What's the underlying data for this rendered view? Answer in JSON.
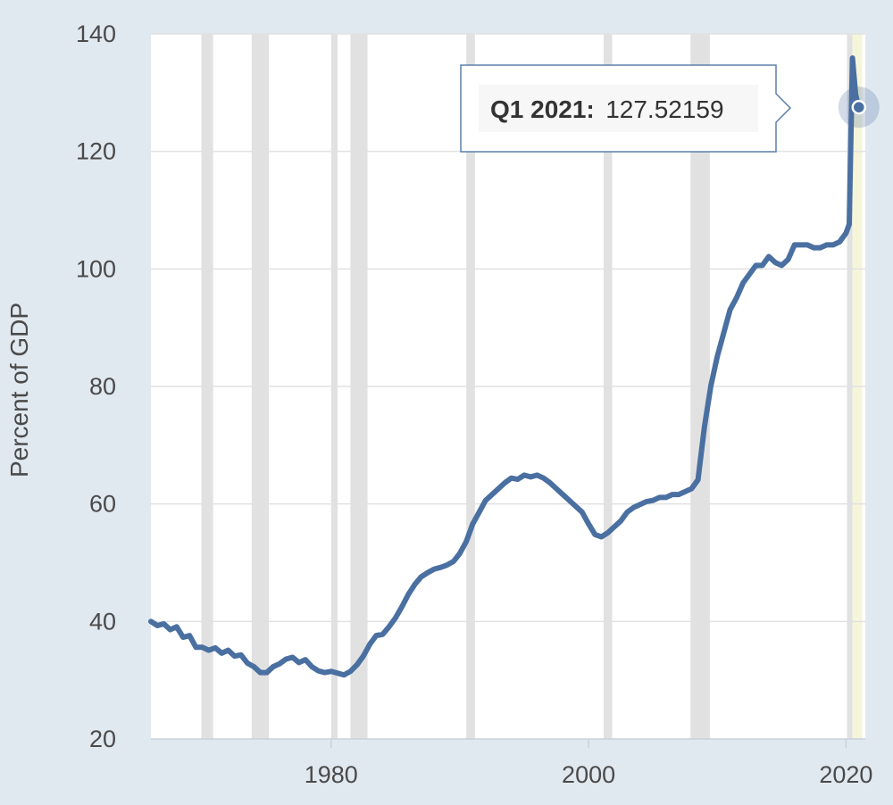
{
  "chart_data": {
    "type": "line",
    "title": "",
    "xlabel": "",
    "ylabel": "Percent of GDP",
    "xlim": [
      1966,
      2021.5
    ],
    "ylim": [
      20,
      140
    ],
    "x_ticks": [
      1980,
      2000,
      2020
    ],
    "y_ticks": [
      20,
      40,
      60,
      80,
      100,
      120,
      140
    ],
    "grid": true,
    "legend": "none",
    "colors": {
      "background": "#e1e9f0",
      "plot_background": "#ffffff",
      "line": "#4a6fa1",
      "recession_band": "#e1e1e1",
      "highlight_band": "#f5f5d9",
      "grid": "#e1e1e1",
      "tick_text": "#4a4a4a"
    },
    "recessions": [
      [
        1969.92,
        1970.83
      ],
      [
        1973.83,
        1975.17
      ],
      [
        1980.0,
        1980.5
      ],
      [
        1981.5,
        1982.83
      ],
      [
        1990.5,
        1991.17
      ],
      [
        2001.17,
        2001.83
      ],
      [
        2007.92,
        2009.42
      ],
      [
        2020.08,
        2020.33
      ]
    ],
    "highlight": [
      2020.5,
      2021.25
    ],
    "series": [
      {
        "values": [
          [
            1966.0,
            40.0
          ],
          [
            1966.5,
            39.3
          ],
          [
            1967.0,
            39.6
          ],
          [
            1967.5,
            38.6
          ],
          [
            1968.0,
            39.1
          ],
          [
            1968.5,
            37.3
          ],
          [
            1969.0,
            37.6
          ],
          [
            1969.5,
            35.6
          ],
          [
            1970.0,
            35.6
          ],
          [
            1970.5,
            35.1
          ],
          [
            1971.0,
            35.5
          ],
          [
            1971.5,
            34.6
          ],
          [
            1972.0,
            35.1
          ],
          [
            1972.5,
            34.1
          ],
          [
            1973.0,
            34.3
          ],
          [
            1973.5,
            32.9
          ],
          [
            1974.0,
            32.3
          ],
          [
            1974.5,
            31.3
          ],
          [
            1975.0,
            31.3
          ],
          [
            1975.5,
            32.3
          ],
          [
            1976.0,
            32.8
          ],
          [
            1976.5,
            33.6
          ],
          [
            1977.0,
            33.9
          ],
          [
            1977.5,
            33.0
          ],
          [
            1978.0,
            33.5
          ],
          [
            1978.5,
            32.3
          ],
          [
            1979.0,
            31.6
          ],
          [
            1979.5,
            31.3
          ],
          [
            1980.0,
            31.5
          ],
          [
            1980.5,
            31.2
          ],
          [
            1981.0,
            30.9
          ],
          [
            1981.5,
            31.5
          ],
          [
            1982.0,
            32.6
          ],
          [
            1982.5,
            34.1
          ],
          [
            1983.0,
            36.1
          ],
          [
            1983.5,
            37.6
          ],
          [
            1984.0,
            37.8
          ],
          [
            1984.5,
            39.1
          ],
          [
            1985.0,
            40.6
          ],
          [
            1985.5,
            42.5
          ],
          [
            1986.0,
            44.6
          ],
          [
            1986.5,
            46.3
          ],
          [
            1987.0,
            47.6
          ],
          [
            1987.5,
            48.3
          ],
          [
            1988.0,
            48.9
          ],
          [
            1988.5,
            49.2
          ],
          [
            1989.0,
            49.6
          ],
          [
            1989.5,
            50.2
          ],
          [
            1990.0,
            51.6
          ],
          [
            1990.5,
            53.6
          ],
          [
            1991.0,
            56.6
          ],
          [
            1991.5,
            58.6
          ],
          [
            1992.0,
            60.6
          ],
          [
            1992.5,
            61.6
          ],
          [
            1993.0,
            62.6
          ],
          [
            1993.5,
            63.6
          ],
          [
            1994.0,
            64.4
          ],
          [
            1994.5,
            64.2
          ],
          [
            1995.0,
            64.9
          ],
          [
            1995.5,
            64.6
          ],
          [
            1996.0,
            64.9
          ],
          [
            1996.5,
            64.4
          ],
          [
            1997.0,
            63.6
          ],
          [
            1997.5,
            62.6
          ],
          [
            1998.0,
            61.6
          ],
          [
            1998.5,
            60.6
          ],
          [
            1999.0,
            59.6
          ],
          [
            1999.5,
            58.6
          ],
          [
            2000.0,
            56.6
          ],
          [
            2000.5,
            54.8
          ],
          [
            2001.0,
            54.4
          ],
          [
            2001.5,
            55.1
          ],
          [
            2002.0,
            56.1
          ],
          [
            2002.5,
            57.1
          ],
          [
            2003.0,
            58.6
          ],
          [
            2003.5,
            59.4
          ],
          [
            2004.0,
            59.9
          ],
          [
            2004.5,
            60.4
          ],
          [
            2005.0,
            60.6
          ],
          [
            2005.5,
            61.1
          ],
          [
            2006.0,
            61.1
          ],
          [
            2006.5,
            61.6
          ],
          [
            2007.0,
            61.6
          ],
          [
            2007.5,
            62.1
          ],
          [
            2008.0,
            62.6
          ],
          [
            2008.5,
            64.1
          ],
          [
            2009.0,
            73.1
          ],
          [
            2009.5,
            80.1
          ],
          [
            2010.0,
            85.1
          ],
          [
            2010.5,
            89.1
          ],
          [
            2011.0,
            93.1
          ],
          [
            2011.5,
            95.1
          ],
          [
            2012.0,
            97.6
          ],
          [
            2012.5,
            99.1
          ],
          [
            2013.0,
            100.6
          ],
          [
            2013.5,
            100.6
          ],
          [
            2014.0,
            102.1
          ],
          [
            2014.5,
            101.1
          ],
          [
            2015.0,
            100.6
          ],
          [
            2015.5,
            101.6
          ],
          [
            2016.0,
            104.1
          ],
          [
            2016.5,
            104.1
          ],
          [
            2017.0,
            104.1
          ],
          [
            2017.5,
            103.6
          ],
          [
            2018.0,
            103.6
          ],
          [
            2018.5,
            104.1
          ],
          [
            2019.0,
            104.1
          ],
          [
            2019.5,
            104.6
          ],
          [
            2020.0,
            106.1
          ],
          [
            2020.25,
            107.6
          ],
          [
            2020.5,
            135.9
          ],
          [
            2020.75,
            129.6
          ],
          [
            2021.0,
            127.52159
          ]
        ]
      }
    ],
    "tooltip": {
      "date": "Q1 2021:",
      "value": "127.52159"
    }
  }
}
